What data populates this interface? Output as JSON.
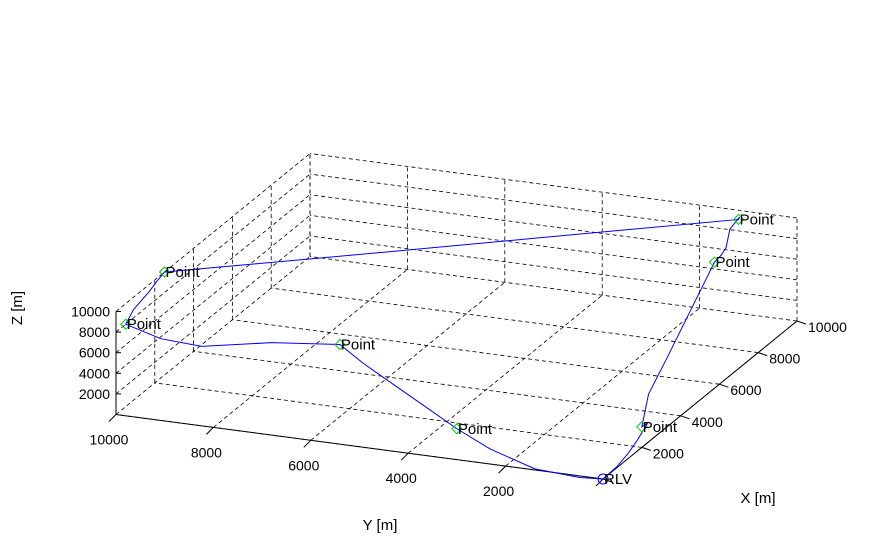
{
  "chart_data": {
    "type": "line3d",
    "title": "",
    "xlabel": "X [m]",
    "ylabel": "Y [m]",
    "zlabel": "Z [m]",
    "x_ticks": [
      "2000",
      "4000",
      "6000",
      "8000",
      "10000"
    ],
    "y_ticks": [
      "2000",
      "4000",
      "6000",
      "8000",
      "10000"
    ],
    "z_ticks": [
      "2000",
      "4000",
      "6000",
      "8000",
      "10000"
    ],
    "xlim": [
      0,
      10000
    ],
    "ylim": [
      0,
      10000
    ],
    "zlim": [
      0,
      10000
    ],
    "grid": true,
    "colors": {
      "trajectory": "#0000ff",
      "waypoint": "#00cc00",
      "start": "#0000ff"
    },
    "start": {
      "label": "RLV",
      "x": 0,
      "y": 0,
      "z": 0
    },
    "waypoints": [
      {
        "label": "Point",
        "x": 0,
        "y": 3000,
        "z": 3000
      },
      {
        "label": "Point",
        "x": 1500,
        "y": 6000,
        "z": 7000
      },
      {
        "label": "Point",
        "x": 500,
        "y": 10000,
        "z": 8000
      },
      {
        "label": "Point",
        "x": 2500,
        "y": 10000,
        "z": 10000
      },
      {
        "label": "Point",
        "x": 9500,
        "y": 1000,
        "z": 10000
      },
      {
        "label": "Point",
        "x": 7000,
        "y": 500,
        "z": 10000
      },
      {
        "label": "Point",
        "x": 2000,
        "y": 0,
        "z": 2000
      }
    ],
    "trajectory": [
      {
        "x": 0,
        "y": 0,
        "z": 0
      },
      {
        "x": -200,
        "y": 400,
        "z": 200
      },
      {
        "x": -500,
        "y": 1200,
        "z": 1000
      },
      {
        "x": -300,
        "y": 2200,
        "z": 2000
      },
      {
        "x": 0,
        "y": 3000,
        "z": 3000
      },
      {
        "x": 400,
        "y": 3800,
        "z": 4000
      },
      {
        "x": 800,
        "y": 4600,
        "z": 5000
      },
      {
        "x": 1200,
        "y": 5400,
        "z": 6000
      },
      {
        "x": 1500,
        "y": 6000,
        "z": 7000
      },
      {
        "x": 1000,
        "y": 7200,
        "z": 7200
      },
      {
        "x": 400,
        "y": 8400,
        "z": 7000
      },
      {
        "x": 300,
        "y": 9200,
        "z": 7400
      },
      {
        "x": 500,
        "y": 10000,
        "z": 8000
      },
      {
        "x": 900,
        "y": 10000,
        "z": 8800
      },
      {
        "x": 1700,
        "y": 10000,
        "z": 9300
      },
      {
        "x": 2100,
        "y": 10000,
        "z": 9700
      },
      {
        "x": 2500,
        "y": 10000,
        "z": 10000
      },
      {
        "x": 4500,
        "y": 7400,
        "z": 10000
      },
      {
        "x": 7000,
        "y": 4200,
        "z": 10000
      },
      {
        "x": 9500,
        "y": 1000,
        "z": 10000
      },
      {
        "x": 9300,
        "y": 900,
        "z": 10600
      },
      {
        "x": 8800,
        "y": 900,
        "z": 10200
      },
      {
        "x": 8100,
        "y": 700,
        "z": 9600
      },
      {
        "x": 7600,
        "y": 600,
        "z": 9700
      },
      {
        "x": 7000,
        "y": 500,
        "z": 10000
      },
      {
        "x": 6200,
        "y": 400,
        "z": 9200
      },
      {
        "x": 5000,
        "y": 300,
        "z": 7500
      },
      {
        "x": 3800,
        "y": 200,
        "z": 5800
      },
      {
        "x": 2600,
        "y": 100,
        "z": 4200
      },
      {
        "x": 2000,
        "y": 0,
        "z": 2000
      },
      {
        "x": 2300,
        "y": 0,
        "z": 1900
      },
      {
        "x": 1800,
        "y": 0,
        "z": 1100
      },
      {
        "x": 1300,
        "y": 0,
        "z": 500
      },
      {
        "x": 700,
        "y": 0,
        "z": 100
      },
      {
        "x": 0,
        "y": 0,
        "z": 0
      }
    ]
  }
}
